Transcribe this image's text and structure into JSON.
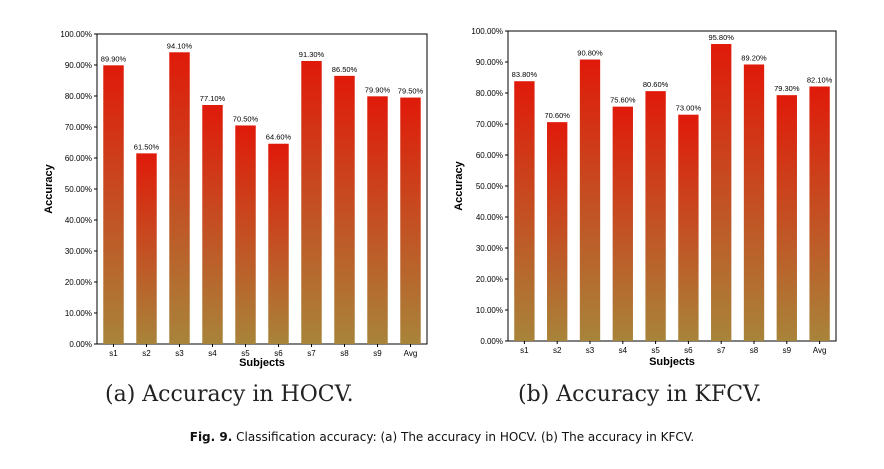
{
  "chart_data": [
    {
      "type": "bar",
      "categories": [
        "s1",
        "s2",
        "s3",
        "s4",
        "s5",
        "s6",
        "s7",
        "s8",
        "s9",
        "Avg"
      ],
      "values": [
        89.9,
        61.5,
        94.1,
        77.1,
        70.5,
        64.6,
        91.3,
        86.5,
        79.9,
        79.5
      ],
      "data_labels": [
        "89.90%",
        "61.50%",
        "94.10%",
        "77.10%",
        "70.50%",
        "64.60%",
        "91.30%",
        "86.50%",
        "79.90%",
        "79.50%"
      ],
      "xlabel": "Subjects",
      "ylabel": "Accuracy",
      "ylim": [
        0,
        100
      ],
      "yticks": [
        "0.00%",
        "10.00%",
        "20.00%",
        "30.00%",
        "40.00%",
        "50.00%",
        "60.00%",
        "70.00%",
        "80.00%",
        "90.00%",
        "100.00%"
      ],
      "grid": false,
      "bar_color_top": "#e01a0a",
      "bar_color_bottom": "#a8843a",
      "subcaption": "(a) Accuracy in HOCV."
    },
    {
      "type": "bar",
      "categories": [
        "s1",
        "s2",
        "s3",
        "s4",
        "s5",
        "s6",
        "s7",
        "s8",
        "s9",
        "Avg"
      ],
      "values": [
        83.8,
        70.6,
        90.8,
        75.6,
        80.6,
        73.0,
        95.8,
        89.2,
        79.3,
        82.1
      ],
      "data_labels": [
        "83.80%",
        "70.60%",
        "90.80%",
        "75.60%",
        "80.60%",
        "73.00%",
        "95.80%",
        "89.20%",
        "79.30%",
        "82.10%"
      ],
      "xlabel": "Subjects",
      "ylabel": "Accuracy",
      "ylim": [
        0,
        100
      ],
      "yticks": [
        "0.00%",
        "10.00%",
        "20.00%",
        "30.00%",
        "40.00%",
        "50.00%",
        "60.00%",
        "70.00%",
        "80.00%",
        "90.00%",
        "100.00%"
      ],
      "grid": false,
      "bar_color_top": "#e01a0a",
      "bar_color_bottom": "#a8843a",
      "subcaption": "(b) Accuracy in KFCV."
    }
  ],
  "caption": {
    "label": "Fig. 9.",
    "text": "Classification accuracy: (a) The accuracy in HOCV. (b) The accuracy in KFCV."
  }
}
